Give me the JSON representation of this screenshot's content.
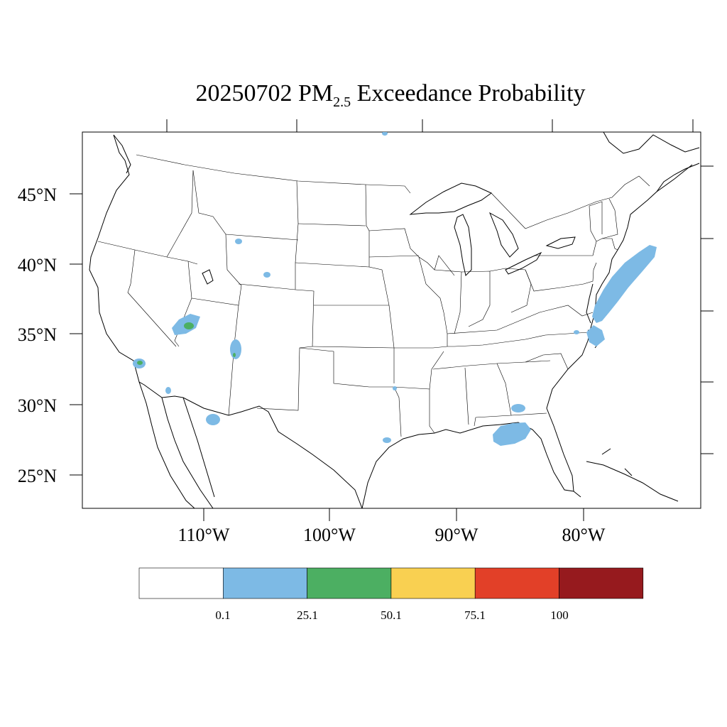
{
  "title": {
    "date": "20250702",
    "pollutant": "PM",
    "subscript": "2.5",
    "suffix": "Exceedance Probability"
  },
  "map": {
    "lon_labels": [
      "110°W",
      "100°W",
      "90°W",
      "80°W"
    ],
    "lat_labels": [
      "45°N",
      "40°N",
      "35°N",
      "30°N",
      "25°N"
    ]
  },
  "legend": {
    "colors": [
      "#ffffff",
      "#7dbae5",
      "#4caf62",
      "#f9d051",
      "#e24028",
      "#961a1e"
    ],
    "labels": [
      "0.1",
      "25.1",
      "50.1",
      "75.1",
      "100"
    ]
  },
  "colors": {
    "low": "#7dbae5",
    "moderate": "#4caf62",
    "border": "#000000"
  }
}
